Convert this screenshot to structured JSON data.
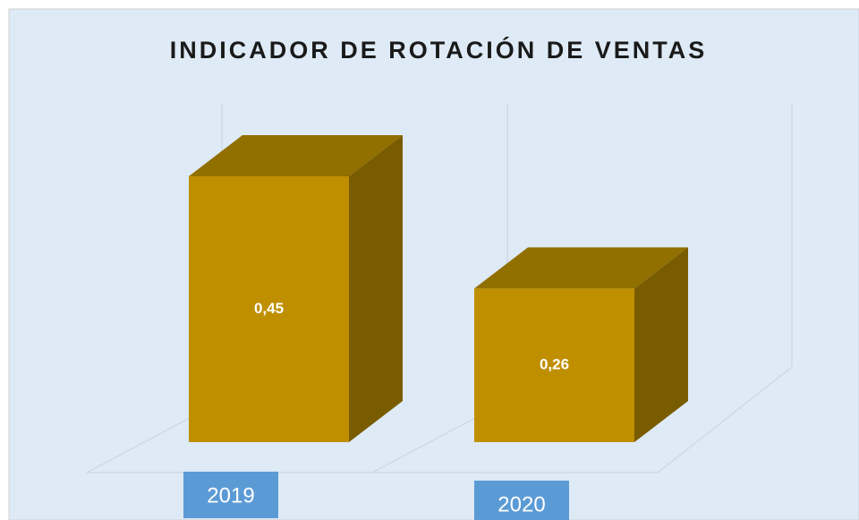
{
  "chart_data": {
    "type": "bar3d",
    "title": "INDICADOR DE ROTACIÓN DE VENTAS",
    "categories": [
      "2019",
      "2020"
    ],
    "values": [
      0.45,
      0.26
    ],
    "value_labels": [
      "0,45",
      "0,26"
    ],
    "color": "#bf8f00",
    "category_box_color": "#5b9bd5"
  }
}
